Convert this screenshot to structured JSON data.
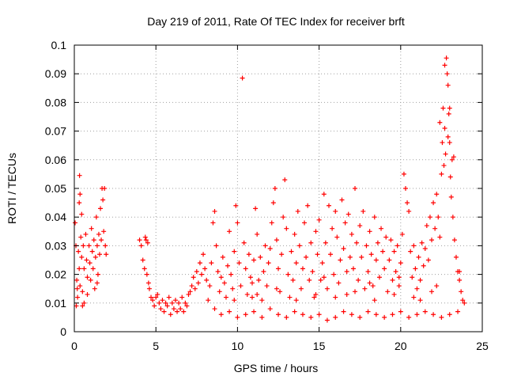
{
  "chart_data": {
    "type": "scatter",
    "title": "Day 219 of 2011, Rate Of TEC Index for receiver brft",
    "xlabel": "GPS time / hours",
    "ylabel": "ROTI / TECUs",
    "xlim": [
      0,
      25
    ],
    "ylim": [
      0,
      0.1
    ],
    "xticks": [
      "0",
      "5",
      "10",
      "15",
      "20",
      "25"
    ],
    "yticks": [
      "0",
      "0.01",
      "0.02",
      "0.03",
      "0.04",
      "0.05",
      "0.06",
      "0.07",
      "0.08",
      "0.09",
      "0.1"
    ],
    "grid": true,
    "marker": "plus",
    "color": "#ff0000",
    "series": [
      {
        "points": [
          [
            0.05,
            0.038
          ],
          [
            0.1,
            0.03
          ],
          [
            0.15,
            0.018
          ],
          [
            0.2,
            0.012
          ],
          [
            0.25,
            0.028
          ],
          [
            0.3,
            0.022
          ],
          [
            0.35,
            0.016
          ],
          [
            0.4,
            0.033
          ],
          [
            0.45,
            0.026
          ],
          [
            0.5,
            0.014
          ],
          [
            0.55,
            0.03
          ],
          [
            0.6,
            0.022
          ],
          [
            0.7,
            0.034
          ],
          [
            0.75,
            0.025
          ],
          [
            0.8,
            0.019
          ],
          [
            0.9,
            0.03
          ],
          [
            0.95,
            0.024
          ],
          [
            1.0,
            0.018
          ],
          [
            1.05,
            0.036
          ],
          [
            1.1,
            0.028
          ],
          [
            1.15,
            0.022
          ],
          [
            1.2,
            0.032
          ],
          [
            1.3,
            0.026
          ],
          [
            1.35,
            0.04
          ],
          [
            1.4,
            0.03
          ],
          [
            1.45,
            0.02
          ],
          [
            1.5,
            0.034
          ],
          [
            1.55,
            0.027
          ],
          [
            1.6,
            0.043
          ],
          [
            1.65,
            0.032
          ],
          [
            1.7,
            0.05
          ],
          [
            1.75,
            0.046
          ],
          [
            1.8,
            0.035
          ],
          [
            1.85,
            0.05
          ],
          [
            1.9,
            0.03
          ],
          [
            1.95,
            0.027
          ],
          [
            0.12,
            0.009
          ],
          [
            0.18,
            0.015
          ],
          [
            0.3,
            0.045
          ],
          [
            0.32,
            0.0545
          ],
          [
            0.35,
            0.048
          ],
          [
            0.45,
            0.041
          ],
          [
            0.5,
            0.009
          ],
          [
            0.6,
            0.01
          ],
          [
            0.8,
            0.013
          ],
          [
            1.25,
            0.015
          ],
          [
            1.4,
            0.017
          ],
          [
            4.0,
            0.032
          ],
          [
            4.1,
            0.03
          ],
          [
            4.2,
            0.025
          ],
          [
            4.3,
            0.022
          ],
          [
            4.35,
            0.033
          ],
          [
            4.4,
            0.032
          ],
          [
            4.45,
            0.02
          ],
          [
            4.5,
            0.031
          ],
          [
            4.55,
            0.017
          ],
          [
            4.6,
            0.015
          ],
          [
            4.7,
            0.012
          ],
          [
            4.8,
            0.011
          ],
          [
            4.9,
            0.009
          ],
          [
            5.0,
            0.012
          ],
          [
            5.1,
            0.013
          ],
          [
            5.2,
            0.01
          ],
          [
            5.3,
            0.008
          ],
          [
            5.4,
            0.011
          ],
          [
            5.5,
            0.007
          ],
          [
            5.6,
            0.01
          ],
          [
            5.7,
            0.009
          ],
          [
            5.8,
            0.012
          ],
          [
            5.9,
            0.006
          ],
          [
            6.0,
            0.01
          ],
          [
            6.1,
            0.008
          ],
          [
            6.2,
            0.011
          ],
          [
            6.3,
            0.007
          ],
          [
            6.4,
            0.01
          ],
          [
            6.5,
            0.008
          ],
          [
            6.6,
            0.012
          ],
          [
            6.7,
            0.007
          ],
          [
            6.8,
            0.01
          ],
          [
            6.9,
            0.009
          ],
          [
            7.0,
            0.013
          ],
          [
            7.1,
            0.014
          ],
          [
            7.2,
            0.016
          ],
          [
            7.3,
            0.019
          ],
          [
            7.4,
            0.015
          ],
          [
            7.5,
            0.021
          ],
          [
            7.6,
            0.017
          ],
          [
            7.7,
            0.024
          ],
          [
            7.8,
            0.02
          ],
          [
            7.9,
            0.027
          ],
          [
            8.0,
            0.022
          ],
          [
            8.1,
            0.018
          ],
          [
            8.2,
            0.011
          ],
          [
            8.3,
            0.016
          ],
          [
            8.4,
            0.024
          ],
          [
            8.5,
            0.038
          ],
          [
            8.6,
            0.042
          ],
          [
            8.7,
            0.03
          ],
          [
            8.8,
            0.021
          ],
          [
            8.9,
            0.014
          ],
          [
            9.0,
            0.019
          ],
          [
            9.1,
            0.026
          ],
          [
            9.2,
            0.017
          ],
          [
            9.3,
            0.012
          ],
          [
            9.4,
            0.023
          ],
          [
            9.5,
            0.035
          ],
          [
            9.6,
            0.02
          ],
          [
            9.7,
            0.015
          ],
          [
            9.8,
            0.028
          ],
          [
            9.9,
            0.044
          ],
          [
            10.0,
            0.038
          ],
          [
            10.1,
            0.024
          ],
          [
            10.2,
            0.016
          ],
          [
            10.3,
            0.0885
          ],
          [
            10.4,
            0.031
          ],
          [
            10.5,
            0.022
          ],
          [
            10.6,
            0.013
          ],
          [
            10.7,
            0.027
          ],
          [
            10.8,
            0.019
          ],
          [
            10.9,
            0.012
          ],
          [
            11.0,
            0.025
          ],
          [
            11.1,
            0.043
          ],
          [
            11.2,
            0.034
          ],
          [
            11.3,
            0.018
          ],
          [
            11.4,
            0.026
          ],
          [
            11.5,
            0.011
          ],
          [
            11.6,
            0.021
          ],
          [
            11.7,
            0.03
          ],
          [
            11.8,
            0.016
          ],
          [
            11.9,
            0.024
          ],
          [
            12.0,
            0.029
          ],
          [
            12.1,
            0.038
          ],
          [
            12.2,
            0.045
          ],
          [
            12.3,
            0.05
          ],
          [
            12.4,
            0.032
          ],
          [
            12.5,
            0.022
          ],
          [
            12.6,
            0.014
          ],
          [
            12.7,
            0.027
          ],
          [
            12.8,
            0.04
          ],
          [
            12.9,
            0.053
          ],
          [
            13.0,
            0.036
          ],
          [
            13.1,
            0.02
          ],
          [
            13.2,
            0.012
          ],
          [
            13.3,
            0.028
          ],
          [
            13.4,
            0.018
          ],
          [
            13.5,
            0.034
          ],
          [
            13.6,
            0.024
          ],
          [
            13.7,
            0.042
          ],
          [
            13.8,
            0.03
          ],
          [
            13.9,
            0.015
          ],
          [
            14.0,
            0.022
          ],
          [
            14.1,
            0.038
          ],
          [
            14.2,
            0.026
          ],
          [
            14.3,
            0.044
          ],
          [
            14.4,
            0.018
          ],
          [
            14.5,
            0.031
          ],
          [
            14.6,
            0.021
          ],
          [
            14.7,
            0.012
          ],
          [
            14.8,
            0.035
          ],
          [
            14.9,
            0.027
          ],
          [
            15.0,
            0.039
          ],
          [
            15.1,
            0.018
          ],
          [
            15.2,
            0.024
          ],
          [
            15.3,
            0.048
          ],
          [
            15.4,
            0.031
          ],
          [
            15.5,
            0.015
          ],
          [
            15.6,
            0.044
          ],
          [
            15.7,
            0.027
          ],
          [
            15.8,
            0.036
          ],
          [
            15.9,
            0.02
          ],
          [
            16.0,
            0.042
          ],
          [
            16.1,
            0.033
          ],
          [
            16.2,
            0.017
          ],
          [
            16.3,
            0.025
          ],
          [
            16.4,
            0.046
          ],
          [
            16.5,
            0.029
          ],
          [
            16.6,
            0.038
          ],
          [
            16.7,
            0.013
          ],
          [
            16.8,
            0.041
          ],
          [
            16.9,
            0.026
          ],
          [
            17.0,
            0.034
          ],
          [
            17.1,
            0.022
          ],
          [
            17.2,
            0.05
          ],
          [
            17.3,
            0.031
          ],
          [
            17.4,
            0.018
          ],
          [
            17.5,
            0.037
          ],
          [
            17.6,
            0.026
          ],
          [
            17.7,
            0.042
          ],
          [
            17.8,
            0.015
          ],
          [
            17.9,
            0.03
          ],
          [
            18.0,
            0.021
          ],
          [
            18.1,
            0.035
          ],
          [
            18.2,
            0.027
          ],
          [
            18.3,
            0.016
          ],
          [
            18.4,
            0.04
          ],
          [
            18.5,
            0.025
          ],
          [
            18.6,
            0.031
          ],
          [
            18.7,
            0.019
          ],
          [
            18.8,
            0.036
          ],
          [
            18.9,
            0.028
          ],
          [
            19.0,
            0.022
          ],
          [
            19.1,
            0.033
          ],
          [
            19.2,
            0.014
          ],
          [
            19.3,
            0.025
          ],
          [
            19.4,
            0.032
          ],
          [
            19.5,
            0.018
          ],
          [
            19.6,
            0.028
          ],
          [
            19.7,
            0.021
          ],
          [
            19.8,
            0.03
          ],
          [
            19.9,
            0.016
          ],
          [
            20.0,
            0.024
          ],
          [
            20.1,
            0.034
          ],
          [
            20.2,
            0.055
          ],
          [
            20.3,
            0.05
          ],
          [
            20.4,
            0.045
          ],
          [
            20.5,
            0.042
          ],
          [
            20.6,
            0.028
          ],
          [
            20.7,
            0.019
          ],
          [
            20.8,
            0.03
          ],
          [
            20.9,
            0.022
          ],
          [
            21.0,
            0.015
          ],
          [
            21.1,
            0.026
          ],
          [
            21.2,
            0.018
          ],
          [
            21.3,
            0.031
          ],
          [
            21.4,
            0.023
          ],
          [
            21.5,
            0.029
          ],
          [
            21.6,
            0.037
          ],
          [
            21.7,
            0.025
          ],
          [
            21.8,
            0.04
          ],
          [
            21.9,
            0.032
          ],
          [
            22.0,
            0.045
          ],
          [
            22.1,
            0.036
          ],
          [
            22.2,
            0.048
          ],
          [
            22.3,
            0.04
          ],
          [
            22.4,
            0.033
          ],
          [
            22.5,
            0.055
          ],
          [
            22.55,
            0.066
          ],
          [
            22.6,
            0.078
          ],
          [
            22.65,
            0.058
          ],
          [
            22.7,
            0.071
          ],
          [
            22.75,
            0.062
          ],
          [
            22.8,
            0.0955
          ],
          [
            22.85,
            0.09
          ],
          [
            22.9,
            0.086
          ],
          [
            22.95,
            0.076
          ],
          [
            23.0,
            0.066
          ],
          [
            23.05,
            0.054
          ],
          [
            23.1,
            0.047
          ],
          [
            23.15,
            0.06
          ],
          [
            23.2,
            0.04
          ],
          [
            23.3,
            0.032
          ],
          [
            23.4,
            0.026
          ],
          [
            23.5,
            0.021
          ],
          [
            23.6,
            0.018
          ],
          [
            23.7,
            0.014
          ],
          [
            23.8,
            0.011
          ],
          [
            23.9,
            0.01
          ],
          [
            22.4,
            0.073
          ],
          [
            22.7,
            0.093
          ],
          [
            22.9,
            0.068
          ],
          [
            23.0,
            0.078
          ],
          [
            23.25,
            0.061
          ],
          [
            8.6,
            0.008
          ],
          [
            9.0,
            0.006
          ],
          [
            9.5,
            0.007
          ],
          [
            10.0,
            0.005
          ],
          [
            10.5,
            0.006
          ],
          [
            11.0,
            0.007
          ],
          [
            11.5,
            0.005
          ],
          [
            12.0,
            0.008
          ],
          [
            12.5,
            0.006
          ],
          [
            13.0,
            0.005
          ],
          [
            13.5,
            0.007
          ],
          [
            14.0,
            0.006
          ],
          [
            14.5,
            0.005
          ],
          [
            15.0,
            0.006
          ],
          [
            15.5,
            0.004
          ],
          [
            16.0,
            0.005
          ],
          [
            16.5,
            0.007
          ],
          [
            17.0,
            0.006
          ],
          [
            17.5,
            0.005
          ],
          [
            18.0,
            0.007
          ],
          [
            18.5,
            0.006
          ],
          [
            19.0,
            0.005
          ],
          [
            19.5,
            0.006
          ],
          [
            20.0,
            0.007
          ],
          [
            20.5,
            0.005
          ],
          [
            21.0,
            0.006
          ],
          [
            21.5,
            0.007
          ],
          [
            22.0,
            0.006
          ],
          [
            22.5,
            0.005
          ],
          [
            23.0,
            0.006
          ],
          [
            23.5,
            0.007
          ],
          [
            11.2,
            0.013
          ],
          [
            12.4,
            0.015
          ],
          [
            13.6,
            0.011
          ],
          [
            14.8,
            0.013
          ],
          [
            16.0,
            0.012
          ],
          [
            17.2,
            0.014
          ],
          [
            18.4,
            0.011
          ],
          [
            19.6,
            0.013
          ],
          [
            20.8,
            0.012
          ],
          [
            21.9,
            0.014
          ],
          [
            9.8,
            0.011
          ],
          [
            10.9,
            0.017
          ],
          [
            15.3,
            0.019
          ],
          [
            16.7,
            0.021
          ],
          [
            18.1,
            0.017
          ],
          [
            19.9,
            0.019
          ],
          [
            21.2,
            0.011
          ],
          [
            22.2,
            0.016
          ],
          [
            23.6,
            0.021
          ]
        ]
      }
    ]
  }
}
